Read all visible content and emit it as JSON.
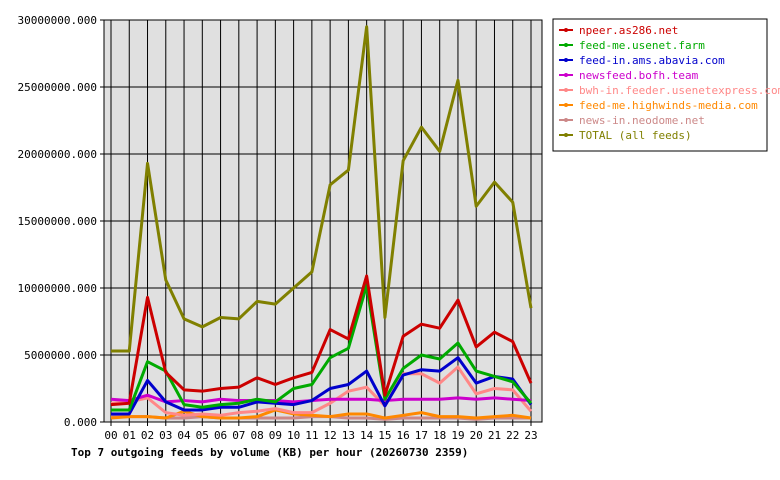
{
  "chart_data": {
    "type": "line",
    "title": "Top 7 outgoing feeds by volume (KB) per hour (20260730 2359)",
    "categories": [
      "00",
      "01",
      "02",
      "03",
      "04",
      "05",
      "06",
      "07",
      "08",
      "09",
      "10",
      "11",
      "12",
      "13",
      "14",
      "15",
      "16",
      "17",
      "18",
      "19",
      "20",
      "21",
      "22",
      "23"
    ],
    "y_ticks": [
      "0.000",
      "5000000.000",
      "10000000.000",
      "15000000.000",
      "20000000.000",
      "25000000.000",
      "30000000.000"
    ],
    "ylim": [
      0,
      30000000
    ],
    "grid": true,
    "legend_position": "top-right",
    "series": [
      {
        "name": "npeer.as286.net",
        "color": "#cc0000",
        "values": [
          1300000,
          1400000,
          9300000,
          3700000,
          2400000,
          2300000,
          2500000,
          2600000,
          3300000,
          2800000,
          3300000,
          3700000,
          6900000,
          6200000,
          10900000,
          2000000,
          6400000,
          7300000,
          7000000,
          9100000,
          5600000,
          6700000,
          6000000,
          2900000
        ]
      },
      {
        "name": "feed-me.usenet.farm",
        "color": "#00aa00",
        "values": [
          900000,
          900000,
          4500000,
          3800000,
          1300000,
          1100000,
          1300000,
          1400000,
          1700000,
          1500000,
          2500000,
          2800000,
          4800000,
          5500000,
          10200000,
          1700000,
          4000000,
          5000000,
          4700000,
          5900000,
          3800000,
          3400000,
          3000000,
          1400000
        ]
      },
      {
        "name": "feed-in.ams.abavia.com",
        "color": "#0000cc",
        "values": [
          600000,
          600000,
          3100000,
          1500000,
          900000,
          900000,
          1100000,
          1100000,
          1500000,
          1400000,
          1300000,
          1600000,
          2500000,
          2800000,
          3800000,
          1200000,
          3500000,
          3900000,
          3800000,
          4800000,
          2900000,
          3400000,
          3200000,
          1300000
        ]
      },
      {
        "name": "newsfeed.bofh.team",
        "color": "#cc00cc",
        "values": [
          1700000,
          1600000,
          2000000,
          1500000,
          1600000,
          1500000,
          1700000,
          1600000,
          1600000,
          1600000,
          1500000,
          1600000,
          1700000,
          1700000,
          1700000,
          1600000,
          1700000,
          1700000,
          1700000,
          1800000,
          1700000,
          1800000,
          1700000,
          1600000
        ]
      },
      {
        "name": "bwh-in.feeder.usenetexpress.com",
        "color": "#ff8888",
        "values": [
          1400000,
          1500000,
          1800000,
          700000,
          500000,
          600000,
          500000,
          700000,
          800000,
          1000000,
          700000,
          700000,
          1400000,
          2300000,
          2600000,
          1200000,
          3600000,
          3600000,
          2900000,
          4100000,
          2100000,
          2500000,
          2400000,
          800000
        ]
      },
      {
        "name": "feed-me.highwinds-media.com",
        "color": "#ff8800",
        "values": [
          300000,
          400000,
          400000,
          300000,
          800000,
          400000,
          300000,
          300000,
          400000,
          900000,
          600000,
          500000,
          400000,
          600000,
          600000,
          300000,
          500000,
          700000,
          400000,
          400000,
          300000,
          400000,
          500000,
          300000
        ]
      },
      {
        "name": "news-in.neodome.net",
        "color": "#cc8888",
        "values": [
          400000,
          400000,
          400000,
          300000,
          300000,
          400000,
          300000,
          300000,
          300000,
          300000,
          300000,
          400000,
          400000,
          300000,
          300000,
          200000,
          300000,
          300000,
          300000,
          300000,
          200000,
          300000,
          300000,
          300000
        ]
      },
      {
        "name": "TOTAL (all feeds)",
        "color": "#808000",
        "values": [
          5300000,
          5300000,
          19300000,
          10600000,
          7700000,
          7100000,
          7800000,
          7700000,
          9000000,
          8800000,
          10000000,
          11200000,
          17700000,
          18800000,
          29500000,
          7800000,
          19500000,
          22000000,
          20200000,
          25500000,
          16100000,
          17900000,
          16400000,
          8500000
        ]
      }
    ]
  }
}
